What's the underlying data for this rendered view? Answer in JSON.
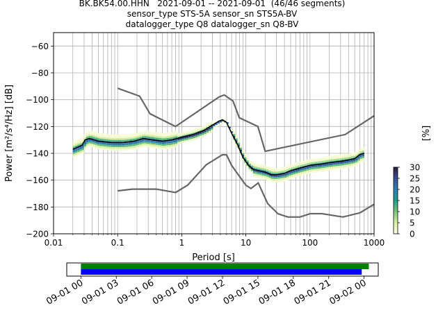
{
  "title_lines": [
    "BK.BK54.00.HHN   2021-09-01 -- 2021-09-01  (46/46 segments)",
    "sensor_type STS-5A sensor_sn STS5A-BV",
    "datalogger_type Q8 datalogger_sn Q8-BV"
  ],
  "chart_data": {
    "type": "heatmap",
    "xlabel": "Period [s]",
    "ylabel": "Power [m²/s⁴/Hz] [dB]",
    "xscale": "log",
    "xlim": [
      0.01,
      1000
    ],
    "ylim": [
      -200,
      -50
    ],
    "xticks": [
      0.01,
      0.1,
      1,
      10,
      100,
      1000
    ],
    "xtick_labels": [
      "0.01",
      "0.1",
      "1",
      "10",
      "100",
      "1000"
    ],
    "yticks": [
      -200,
      -180,
      -160,
      -140,
      -120,
      -100,
      -80,
      -60
    ],
    "ytick_labels": [
      "−200",
      "−180",
      "−160",
      "−140",
      "−120",
      "−100",
      "−80",
      "−60"
    ],
    "grid": true,
    "colorbar": {
      "label": "[%]",
      "min": 0,
      "max": 30,
      "ticks": [
        0,
        5,
        10,
        15,
        20,
        25,
        30
      ],
      "tick_labels": [
        "0",
        "5",
        "10",
        "15",
        "20",
        "25",
        "30"
      ],
      "colors": [
        "#ffffe5",
        "#d9f0a3",
        "#78c679",
        "#1d9e8a",
        "#2c7fb8",
        "#3b4f9a",
        "#2d1e3e"
      ]
    },
    "mode_curve": {
      "x": [
        0.02,
        0.025,
        0.028,
        0.031,
        0.036,
        0.05,
        0.08,
        0.12,
        0.18,
        0.25,
        0.35,
        0.5,
        0.7,
        1.0,
        1.5,
        2.2,
        3.0,
        3.8,
        4.3,
        5.0,
        6.0,
        7.5,
        9.0,
        11,
        13,
        16,
        20,
        25,
        30,
        40,
        50,
        70,
        100,
        150,
        200,
        300,
        400,
        500,
        600,
        700
      ],
      "y": [
        -137,
        -135,
        -134,
        -130,
        -129,
        -131,
        -132,
        -132,
        -131,
        -129,
        -130,
        -131,
        -130,
        -128,
        -126,
        -123,
        -119,
        -116,
        -115,
        -117,
        -125,
        -134,
        -143,
        -149,
        -152,
        -153,
        -154,
        -156,
        -156,
        -155,
        -153,
        -151,
        -149,
        -148,
        -147,
        -146,
        -145,
        -144,
        -141,
        -140
      ]
    },
    "noise_models": [
      {
        "name": "high",
        "x": [
          0.1,
          0.22,
          0.32,
          0.8,
          3.8,
          4.6,
          6.3,
          7.9,
          15.4,
          20,
          354.8,
          1000
        ],
        "y": [
          -91.5,
          -97.4,
          -110.5,
          -120,
          -98,
          -96.5,
          -101,
          -113.5,
          -120,
          -138.5,
          -126,
          -112
        ]
      },
      {
        "name": "low",
        "x": [
          0.1,
          0.17,
          0.4,
          0.8,
          1.24,
          2.4,
          4.3,
          5.0,
          6.0,
          10,
          12,
          15.6,
          21.9,
          31.6,
          45,
          70,
          101,
          154,
          328,
          600,
          1000
        ],
        "y": [
          -168,
          -166.7,
          -166.7,
          -169.2,
          -163.7,
          -148.6,
          -141.1,
          -141.1,
          -149,
          -163.8,
          -166.2,
          -162.1,
          -177.5,
          -185,
          -187.5,
          -187.5,
          -185,
          -185,
          -187.5,
          -184.4,
          -178
        ]
      }
    ]
  },
  "timeline": {
    "tick_labels": [
      "09-01 00",
      "09-01 03",
      "09-01 06",
      "09-01 09",
      "09-01 12",
      "09-01 15",
      "09-01 18",
      "09-01 21",
      "09-02 00"
    ],
    "range_hours": [
      -1.2,
      25.2
    ],
    "data_bar": {
      "start": 0.0,
      "end": 24.4,
      "color": "#008000"
    },
    "psd_bar": {
      "start": 0.0,
      "end": 23.8,
      "color": "#0000ff"
    }
  }
}
